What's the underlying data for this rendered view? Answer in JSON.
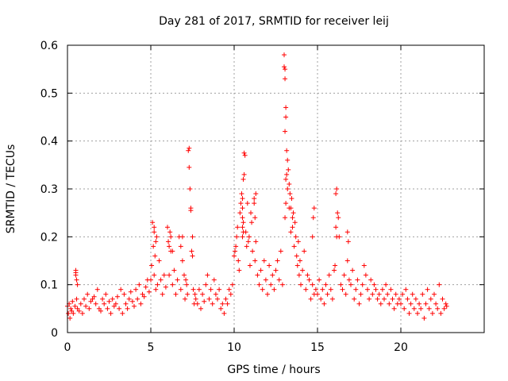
{
  "chart_data": {
    "type": "scatter",
    "title": "Day 281 of 2017, SRMTID for receiver leij",
    "xlabel": "GPS time / hours",
    "ylabel": "SRMTID / TECUs",
    "xlim": [
      0,
      25
    ],
    "ylim": [
      0,
      0.6
    ],
    "xticks": [
      0,
      5,
      10,
      15,
      20
    ],
    "xtick_labels": [
      "0",
      "5",
      "10",
      "15",
      "20"
    ],
    "yticks": [
      0,
      0.1,
      0.2,
      0.3,
      0.4,
      0.5,
      0.6
    ],
    "ytick_labels": [
      "0",
      "0.1",
      "0.2",
      "0.3",
      "0.4",
      "0.5",
      "0.6"
    ],
    "grid": true,
    "marker": "+",
    "colors": {
      "series": "#ff0000"
    },
    "series": [
      {
        "name": "SRMTID",
        "x": [
          0.0,
          0.05,
          0.1,
          0.15,
          0.2,
          0.25,
          0.3,
          0.35,
          0.45,
          0.5,
          0.55,
          0.6,
          0.7,
          0.8,
          0.9,
          1.0,
          1.1,
          1.2,
          1.3,
          1.4,
          1.5,
          1.6,
          1.7,
          1.8,
          1.9,
          2.0,
          2.1,
          2.2,
          2.3,
          2.4,
          2.5,
          2.6,
          2.7,
          2.8,
          2.9,
          3.0,
          3.1,
          3.2,
          3.3,
          3.4,
          3.5,
          3.6,
          3.7,
          3.8,
          3.9,
          4.0,
          4.1,
          4.2,
          4.3,
          4.4,
          4.5,
          4.6,
          4.7,
          4.8,
          4.9,
          0.5,
          0.5,
          0.55,
          0.6,
          5.0,
          5.05,
          5.1,
          5.15,
          5.2,
          5.25,
          5.3,
          5.35,
          5.4,
          5.5,
          5.6,
          5.7,
          5.8,
          5.9,
          6.0,
          6.05,
          6.1,
          6.15,
          6.2,
          6.3,
          6.4,
          6.5,
          6.6,
          6.7,
          6.8,
          6.9,
          7.0,
          7.05,
          7.1,
          7.15,
          7.2,
          7.25,
          7.3,
          7.3,
          7.35,
          7.4,
          7.4,
          7.45,
          7.5,
          7.5,
          7.55,
          7.6,
          7.65,
          7.7,
          7.8,
          7.9,
          8.0,
          8.1,
          8.2,
          8.3,
          8.4,
          8.5,
          8.6,
          8.7,
          8.8,
          8.9,
          9.0,
          9.1,
          9.2,
          9.3,
          9.4,
          9.5,
          9.6,
          9.7,
          9.8,
          9.9,
          5.2,
          5.2,
          5.3,
          6.1,
          6.2,
          6.3,
          6.8,
          6.9,
          10.0,
          10.05,
          10.1,
          10.15,
          10.2,
          10.25,
          10.3,
          10.35,
          10.4,
          10.45,
          10.5,
          10.5,
          10.55,
          10.6,
          10.6,
          10.65,
          10.7,
          10.75,
          10.8,
          10.85,
          10.9,
          10.95,
          11.0,
          11.05,
          11.1,
          11.2,
          11.25,
          11.3,
          11.4,
          11.5,
          11.6,
          11.7,
          11.8,
          11.9,
          12.0,
          12.1,
          12.2,
          12.3,
          12.4,
          12.5,
          12.6,
          12.7,
          12.8,
          12.9,
          10.5,
          10.5,
          10.55,
          10.5,
          10.55,
          11.2,
          11.3,
          11.25,
          13.0,
          13.0,
          13.05,
          13.05,
          13.1,
          13.1,
          13.05,
          13.15,
          13.2,
          13.25,
          13.3,
          13.35,
          13.4,
          13.45,
          13.5,
          13.55,
          13.6,
          13.65,
          13.7,
          13.75,
          13.8,
          13.85,
          13.9,
          13.95,
          14.0,
          14.1,
          14.2,
          14.3,
          14.4,
          14.5,
          14.6,
          14.7,
          14.8,
          14.9,
          13.05,
          13.1,
          13.1,
          13.15,
          13.2,
          13.3,
          13.4,
          13.5,
          15.0,
          15.1,
          15.2,
          15.3,
          15.4,
          15.5,
          15.6,
          15.7,
          15.8,
          15.9,
          16.0,
          16.05,
          16.1,
          16.15,
          16.2,
          16.25,
          16.3,
          16.4,
          16.5,
          16.6,
          16.7,
          16.8,
          16.9,
          17.0,
          17.1,
          17.2,
          17.3,
          17.4,
          17.5,
          17.6,
          17.7,
          17.8,
          17.9,
          18.0,
          18.1,
          18.2,
          18.3,
          18.4,
          18.5,
          18.6,
          18.7,
          18.8,
          18.9,
          19.0,
          19.1,
          19.2,
          19.3,
          19.4,
          19.5,
          19.6,
          19.7,
          19.8,
          19.9,
          14.7,
          14.75,
          14.8,
          16.1,
          16.15,
          16.8,
          16.85,
          20.0,
          20.1,
          20.2,
          20.3,
          20.4,
          20.5,
          20.6,
          20.7,
          20.8,
          20.9,
          21.0,
          21.1,
          21.2,
          21.3,
          21.4,
          21.5,
          21.6,
          21.7,
          21.8,
          21.9,
          22.0,
          22.1,
          22.2,
          22.3,
          22.4,
          22.5,
          22.6,
          22.7,
          22.75
        ],
        "y": [
          0.055,
          0.04,
          0.06,
          0.03,
          0.05,
          0.045,
          0.065,
          0.04,
          0.055,
          0.12,
          0.07,
          0.05,
          0.045,
          0.06,
          0.04,
          0.07,
          0.055,
          0.08,
          0.05,
          0.065,
          0.07,
          0.075,
          0.06,
          0.09,
          0.05,
          0.045,
          0.07,
          0.06,
          0.08,
          0.05,
          0.065,
          0.04,
          0.07,
          0.055,
          0.06,
          0.075,
          0.05,
          0.09,
          0.04,
          0.08,
          0.06,
          0.05,
          0.07,
          0.085,
          0.065,
          0.055,
          0.09,
          0.07,
          0.1,
          0.06,
          0.08,
          0.075,
          0.095,
          0.11,
          0.085,
          0.13,
          0.125,
          0.11,
          0.1,
          0.11,
          0.14,
          0.23,
          0.18,
          0.12,
          0.16,
          0.09,
          0.2,
          0.1,
          0.15,
          0.11,
          0.08,
          0.12,
          0.095,
          0.22,
          0.19,
          0.12,
          0.21,
          0.17,
          0.1,
          0.13,
          0.08,
          0.11,
          0.2,
          0.09,
          0.15,
          0.12,
          0.07,
          0.11,
          0.1,
          0.08,
          0.38,
          0.385,
          0.345,
          0.3,
          0.26,
          0.255,
          0.17,
          0.2,
          0.16,
          0.09,
          0.06,
          0.08,
          0.07,
          0.06,
          0.09,
          0.05,
          0.08,
          0.065,
          0.1,
          0.12,
          0.07,
          0.09,
          0.06,
          0.11,
          0.08,
          0.07,
          0.09,
          0.05,
          0.06,
          0.04,
          0.07,
          0.06,
          0.09,
          0.08,
          0.1,
          0.22,
          0.21,
          0.19,
          0.18,
          0.2,
          0.17,
          0.18,
          0.2,
          0.16,
          0.17,
          0.18,
          0.2,
          0.22,
          0.15,
          0.13,
          0.25,
          0.27,
          0.29,
          0.28,
          0.22,
          0.32,
          0.33,
          0.375,
          0.37,
          0.21,
          0.18,
          0.27,
          0.19,
          0.2,
          0.14,
          0.25,
          0.23,
          0.17,
          0.28,
          0.15,
          0.19,
          0.12,
          0.1,
          0.13,
          0.09,
          0.15,
          0.11,
          0.08,
          0.14,
          0.1,
          0.12,
          0.09,
          0.13,
          0.15,
          0.11,
          0.17,
          0.1,
          0.24,
          0.26,
          0.23,
          0.2,
          0.21,
          0.27,
          0.29,
          0.24,
          0.58,
          0.555,
          0.55,
          0.53,
          0.47,
          0.45,
          0.42,
          0.38,
          0.36,
          0.34,
          0.31,
          0.29,
          0.26,
          0.28,
          0.22,
          0.25,
          0.18,
          0.23,
          0.2,
          0.16,
          0.14,
          0.19,
          0.12,
          0.15,
          0.1,
          0.13,
          0.17,
          0.09,
          0.12,
          0.11,
          0.07,
          0.1,
          0.08,
          0.09,
          0.24,
          0.27,
          0.32,
          0.33,
          0.3,
          0.26,
          0.21,
          0.24,
          0.08,
          0.11,
          0.07,
          0.09,
          0.06,
          0.1,
          0.08,
          0.12,
          0.09,
          0.07,
          0.13,
          0.14,
          0.29,
          0.3,
          0.25,
          0.24,
          0.2,
          0.1,
          0.09,
          0.12,
          0.08,
          0.15,
          0.11,
          0.1,
          0.13,
          0.07,
          0.09,
          0.11,
          0.06,
          0.08,
          0.1,
          0.14,
          0.12,
          0.09,
          0.07,
          0.11,
          0.08,
          0.1,
          0.09,
          0.07,
          0.08,
          0.06,
          0.09,
          0.07,
          0.1,
          0.08,
          0.06,
          0.09,
          0.07,
          0.05,
          0.08,
          0.06,
          0.07,
          0.2,
          0.24,
          0.26,
          0.22,
          0.2,
          0.21,
          0.19,
          0.06,
          0.08,
          0.05,
          0.09,
          0.07,
          0.04,
          0.06,
          0.08,
          0.05,
          0.07,
          0.04,
          0.06,
          0.05,
          0.08,
          0.03,
          0.06,
          0.09,
          0.05,
          0.07,
          0.04,
          0.08,
          0.06,
          0.05,
          0.1,
          0.04,
          0.07,
          0.05,
          0.06,
          0.055
        ]
      }
    ]
  }
}
